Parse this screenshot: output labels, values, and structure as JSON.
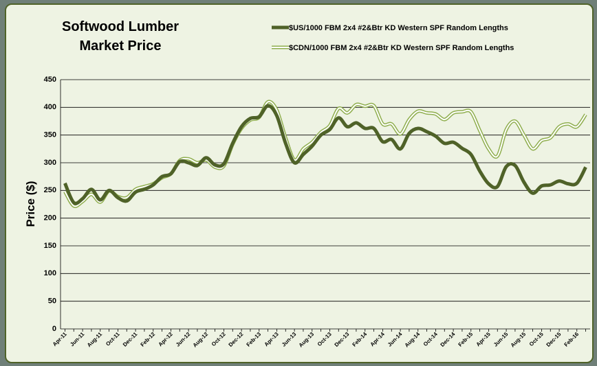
{
  "chart_data": {
    "type": "line",
    "title": [
      "Softwood Lumber",
      "Market Price"
    ],
    "y_label": "Price ($)",
    "categories": [
      "Apr-11",
      null,
      "Jun-11",
      null,
      "Aug-11",
      null,
      "Oct-11",
      null,
      "Dec-11",
      null,
      "Feb-12",
      null,
      "Apr-12",
      null,
      "Jun-12",
      null,
      "Aug-12",
      null,
      "Oct-12",
      null,
      "Dec-12",
      null,
      "Feb-13",
      null,
      "Apr-13",
      null,
      "Jun-13",
      null,
      "Aug-13",
      null,
      "Oct-13",
      null,
      "Dec-13",
      null,
      "Feb-14",
      null,
      "Apr-14",
      null,
      "Jun-14",
      null,
      "Aug-14",
      null,
      "Oct-14",
      null,
      "Dec-14",
      null,
      "Feb-15",
      null,
      "Apr-15",
      null,
      "Jun-15",
      null,
      "Aug-15",
      null,
      "Oct-15",
      null,
      "Dec-15",
      null,
      "Feb-16",
      null
    ],
    "series": [
      {
        "name": "$US/1000 FBM 2x4 #2&Btr KD Western SPF Random Lengths",
        "color": "#4f6228",
        "values": [
          263,
          228,
          235,
          252,
          233,
          250,
          237,
          231,
          247,
          252,
          260,
          275,
          280,
          302,
          300,
          295,
          309,
          296,
          298,
          335,
          365,
          380,
          383,
          403,
          385,
          335,
          300,
          315,
          330,
          350,
          360,
          381,
          365,
          372,
          362,
          362,
          338,
          342,
          325,
          353,
          362,
          356,
          348,
          335,
          337,
          326,
          315,
          285,
          262,
          257,
          293,
          295,
          265,
          245,
          258,
          260,
          267,
          262,
          263,
          292
        ]
      },
      {
        "name": "$CDN/1000 FBM 2x4 #2&Btr KD Western SPF Random Lengths",
        "color": "#8fae4e",
        "values": [
          248,
          222,
          230,
          243,
          229,
          249,
          239,
          237,
          252,
          257,
          262,
          273,
          280,
          304,
          307,
          300,
          305,
          292,
          294,
          333,
          362,
          377,
          382,
          410,
          395,
          345,
          305,
          325,
          337,
          355,
          367,
          398,
          390,
          405,
          402,
          403,
          370,
          370,
          352,
          378,
          393,
          390,
          388,
          378,
          390,
          392,
          392,
          358,
          325,
          312,
          360,
          375,
          350,
          325,
          340,
          345,
          365,
          370,
          365,
          387
        ]
      }
    ],
    "ylim": [
      0,
      450
    ],
    "yticks": [
      0,
      50,
      100,
      150,
      200,
      250,
      300,
      350,
      400,
      450
    ],
    "grid": true
  }
}
